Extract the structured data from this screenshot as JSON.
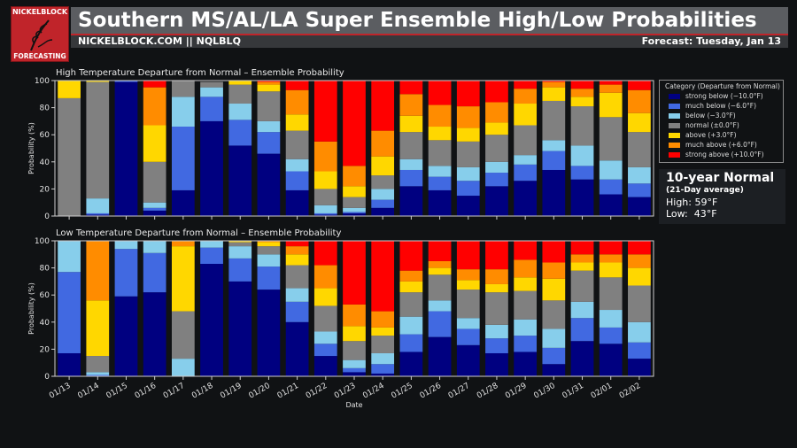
{
  "header": {
    "logo_top": "NICKELBLOCK",
    "logo_bottom": "FORECASTING",
    "title": "Southern MS/AL/LA Super Ensemble High/Low Probabilities",
    "site": "NICKELBLOCK.COM || NQLBLQ",
    "forecast_date": "Forecast: Tuesday, Jan 13"
  },
  "legend": {
    "title": "Category (Departure from Normal)",
    "items": [
      {
        "label": "strong below (−10.0°F)",
        "color": "#000080"
      },
      {
        "label": "much below (−6.0°F)",
        "color": "#4169e1"
      },
      {
        "label": "below (−3.0°F)",
        "color": "#87ceeb"
      },
      {
        "label": "normal (±0.0°F)",
        "color": "#808080"
      },
      {
        "label": "above (+3.0°F)",
        "color": "#ffd700"
      },
      {
        "label": "much above (+6.0°F)",
        "color": "#ff8c00"
      },
      {
        "label": "strong above (+10.0°F)",
        "color": "#ff0000"
      }
    ]
  },
  "normals": {
    "title": "10-year Normal",
    "subtitle": "(21-Day average)",
    "high": "High: 59°F",
    "low": "Low:  43°F"
  },
  "chart_data": [
    {
      "type": "bar",
      "stacked": true,
      "title": "High Temperature Departure from Normal – Ensemble Probability",
      "ylabel": "Probability (%)",
      "xlabel": "",
      "ylim": [
        0,
        100
      ],
      "yticks": [
        0,
        20,
        40,
        60,
        80,
        100
      ],
      "categories": [
        "01/13",
        "01/14",
        "01/15",
        "01/16",
        "01/17",
        "01/18",
        "01/19",
        "01/20",
        "01/21",
        "01/22",
        "01/23",
        "01/24",
        "01/25",
        "01/26",
        "01/27",
        "01/28",
        "01/29",
        "01/30",
        "01/31",
        "02/01",
        "02/02"
      ],
      "series": [
        {
          "name": "strong below",
          "values": [
            0,
            1,
            99,
            4,
            19,
            70,
            52,
            46,
            19,
            1,
            2,
            6,
            22,
            19,
            15,
            22,
            26,
            34,
            27,
            16,
            14
          ]
        },
        {
          "name": "much below",
          "values": [
            0,
            1,
            1,
            2,
            47,
            18,
            19,
            16,
            14,
            1,
            1,
            6,
            12,
            10,
            11,
            10,
            12,
            14,
            10,
            11,
            10
          ]
        },
        {
          "name": "below",
          "values": [
            0,
            11,
            0,
            4,
            22,
            7,
            12,
            8,
            9,
            6,
            3,
            8,
            8,
            8,
            10,
            8,
            7,
            8,
            15,
            14,
            12
          ]
        },
        {
          "name": "normal",
          "values": [
            87,
            86,
            0,
            30,
            12,
            4,
            14,
            22,
            21,
            12,
            8,
            10,
            20,
            19,
            19,
            20,
            22,
            29,
            29,
            32,
            26
          ]
        },
        {
          "name": "above",
          "values": [
            13,
            1,
            0,
            27,
            0,
            0,
            3,
            5,
            12,
            13,
            8,
            14,
            12,
            10,
            10,
            9,
            16,
            10,
            7,
            18,
            14
          ]
        },
        {
          "name": "much above",
          "values": [
            0,
            0,
            0,
            28,
            0,
            0,
            0,
            2,
            18,
            22,
            15,
            19,
            16,
            16,
            16,
            15,
            11,
            4,
            6,
            6,
            17
          ]
        },
        {
          "name": "strong above",
          "values": [
            0,
            0,
            0,
            5,
            0,
            0,
            0,
            1,
            7,
            45,
            63,
            37,
            10,
            18,
            19,
            16,
            6,
            1,
            6,
            3,
            7
          ]
        }
      ]
    },
    {
      "type": "bar",
      "stacked": true,
      "title": "Low Temperature Departure from Normal – Ensemble Probability",
      "ylabel": "Probability (%)",
      "xlabel": "Date",
      "ylim": [
        0,
        100
      ],
      "yticks": [
        0,
        20,
        40,
        60,
        80,
        100
      ],
      "categories": [
        "01/13",
        "01/14",
        "01/15",
        "01/16",
        "01/17",
        "01/18",
        "01/19",
        "01/20",
        "01/21",
        "01/22",
        "01/23",
        "01/24",
        "01/25",
        "01/26",
        "01/27",
        "01/28",
        "01/29",
        "01/30",
        "01/31",
        "02/01",
        "02/02"
      ],
      "series": [
        {
          "name": "strong below",
          "values": [
            17,
            0,
            59,
            62,
            0,
            83,
            70,
            64,
            40,
            15,
            3,
            2,
            18,
            29,
            23,
            17,
            18,
            9,
            26,
            24,
            13
          ]
        },
        {
          "name": "much below",
          "values": [
            60,
            1,
            35,
            29,
            0,
            12,
            17,
            17,
            15,
            9,
            3,
            7,
            13,
            19,
            12,
            11,
            12,
            12,
            17,
            12,
            12
          ]
        },
        {
          "name": "below",
          "values": [
            23,
            2,
            6,
            9,
            13,
            5,
            9,
            9,
            10,
            9,
            6,
            8,
            13,
            8,
            8,
            10,
            12,
            14,
            12,
            13,
            15
          ]
        },
        {
          "name": "normal",
          "values": [
            0,
            12,
            0,
            0,
            35,
            0,
            3,
            6,
            17,
            19,
            14,
            13,
            18,
            19,
            21,
            24,
            21,
            21,
            23,
            24,
            27
          ]
        },
        {
          "name": "above",
          "values": [
            0,
            41,
            0,
            0,
            48,
            0,
            1,
            3,
            8,
            13,
            11,
            6,
            8,
            5,
            7,
            6,
            10,
            16,
            6,
            11,
            13
          ]
        },
        {
          "name": "much above",
          "values": [
            0,
            44,
            0,
            0,
            4,
            0,
            0,
            1,
            6,
            17,
            16,
            12,
            8,
            5,
            8,
            11,
            13,
            12,
            6,
            6,
            10
          ]
        },
        {
          "name": "strong above",
          "values": [
            0,
            0,
            0,
            0,
            0,
            0,
            0,
            0,
            4,
            18,
            47,
            52,
            22,
            15,
            21,
            21,
            14,
            16,
            10,
            10,
            10
          ]
        }
      ]
    }
  ]
}
